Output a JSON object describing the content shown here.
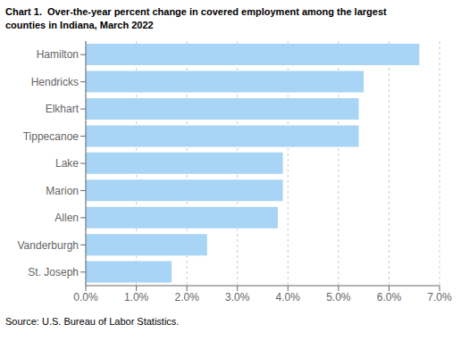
{
  "chart_data": {
    "type": "bar",
    "orientation": "horizontal",
    "title": "Chart 1.  Over-the-year percent change in covered employment among the largest\ncounties in Indiana, March 2022",
    "annotations": [
      "Source: U.S. Bureau of Labor Statistics."
    ],
    "categories": [
      "Hamilton",
      "Hendricks",
      "Elkhart",
      "Tippecanoe",
      "Lake",
      "Marion",
      "Allen",
      "Vanderburgh",
      "St. Joseph"
    ],
    "values": [
      6.6,
      5.5,
      5.4,
      5.4,
      3.9,
      3.9,
      3.8,
      2.4,
      1.7
    ],
    "color": "#a8d4f5",
    "xlim": [
      0,
      7.0
    ],
    "xticks": [
      {
        "value": 0.0,
        "label": "0.0%"
      },
      {
        "value": 1.0,
        "label": "1.0%"
      },
      {
        "value": 2.0,
        "label": "2.0%"
      },
      {
        "value": 3.0,
        "label": "3.0%"
      },
      {
        "value": 4.0,
        "label": "4.0%"
      },
      {
        "value": 5.0,
        "label": "5.0%"
      },
      {
        "value": 6.0,
        "label": "6.0%"
      },
      {
        "value": 7.0,
        "label": "7.0%"
      }
    ],
    "grid": true
  }
}
